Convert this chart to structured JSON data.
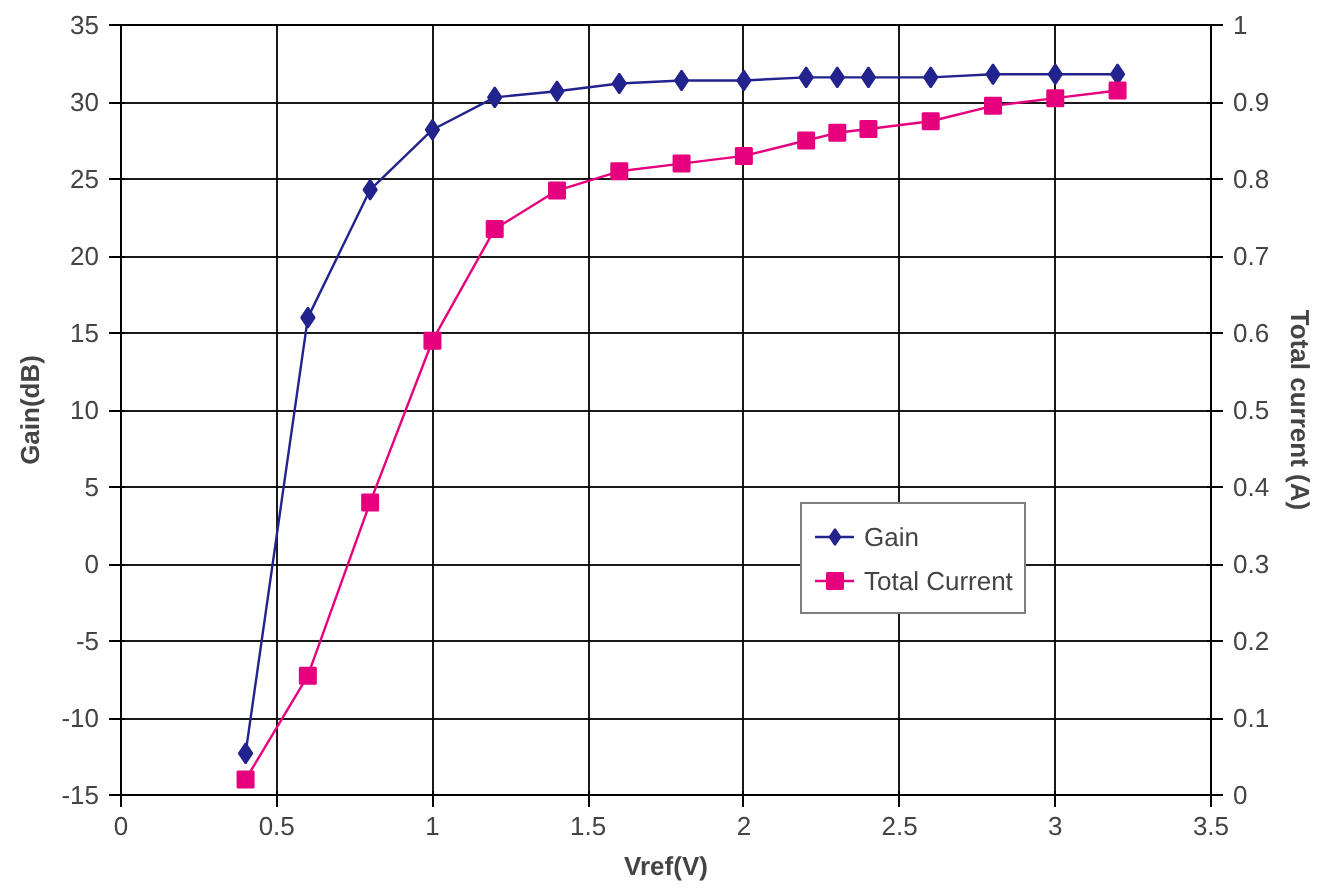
{
  "chart_data": {
    "type": "line",
    "xlabel": "Vref(V)",
    "ylabel": "Gain(dB)",
    "y2label": "Total current (A)",
    "x": [
      0.4,
      0.6,
      0.8,
      1.0,
      1.2,
      1.4,
      1.6,
      1.8,
      2.0,
      2.2,
      2.3,
      2.4,
      2.6,
      2.8,
      3.0,
      3.2
    ],
    "series": [
      {
        "name": "Gain",
        "color": "#23238e",
        "marker": "diamond",
        "values": [
          -12.3,
          16,
          24.3,
          28.2,
          30.3,
          30.7,
          31.2,
          31.4,
          31.4,
          31.6,
          31.6,
          31.6,
          31.6,
          31.8,
          31.8,
          31.8
        ]
      },
      {
        "name": "Total Current",
        "color": "#e6007e",
        "marker": "square",
        "axis": "y2",
        "values": [
          0.02,
          0.155,
          0.38,
          0.59,
          0.735,
          0.785,
          0.81,
          0.82,
          0.83,
          0.85,
          0.86,
          0.865,
          0.875,
          0.895,
          0.905,
          0.915
        ]
      }
    ],
    "xlim": [
      0,
      3.5
    ],
    "xticks": [
      0,
      0.5,
      1,
      1.5,
      2,
      2.5,
      3,
      3.5
    ],
    "ylim": [
      -15,
      35
    ],
    "yticks": [
      -15,
      -10,
      -5,
      0,
      5,
      10,
      15,
      20,
      25,
      30,
      35
    ],
    "y2lim": [
      0,
      1
    ],
    "y2ticks": [
      0,
      0.1,
      0.2,
      0.3,
      0.4,
      0.5,
      0.6,
      0.7,
      0.8,
      0.9,
      1
    ],
    "grid": true,
    "legend": "center right",
    "line_style": "solid"
  }
}
